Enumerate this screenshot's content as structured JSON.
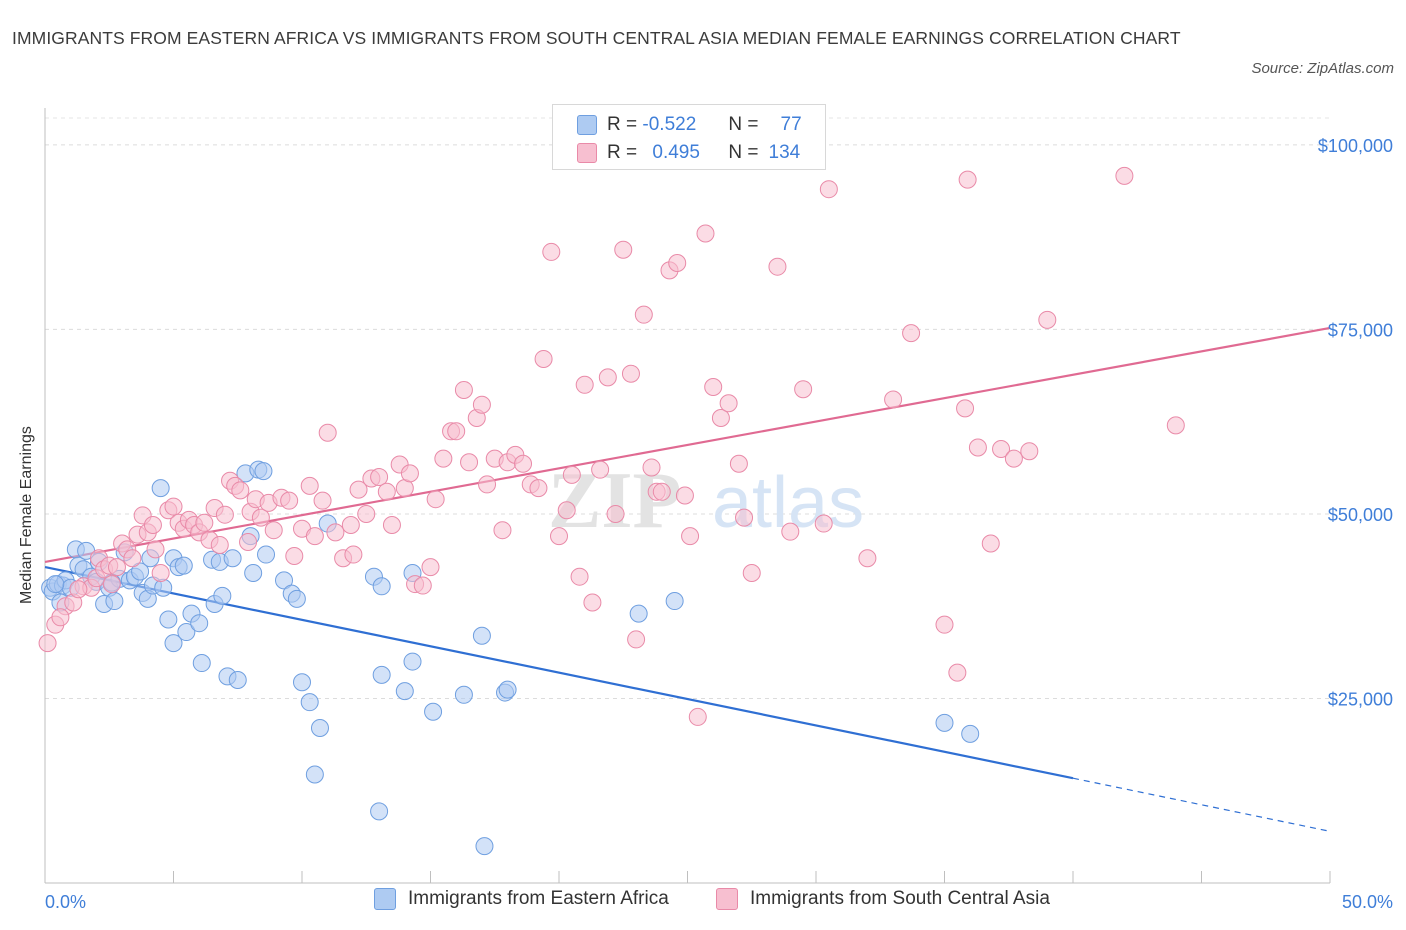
{
  "title": "IMMIGRANTS FROM EASTERN AFRICA VS IMMIGRANTS FROM SOUTH CENTRAL ASIA MEDIAN FEMALE EARNINGS CORRELATION CHART",
  "source": "Source: ZipAtlas.com",
  "watermark": {
    "zip": "ZIP",
    "atlas": "atlas"
  },
  "legend": {
    "rows": [
      {
        "r_label": "R =",
        "r_value": "-0.522",
        "n_label": "N =",
        "n_value": "77",
        "color": "#aecbf2",
        "border": "#6f9fe0"
      },
      {
        "r_label": "R =",
        "r_value": "0.495",
        "n_label": "N =",
        "n_value": "134",
        "color": "#f7bfd0",
        "border": "#e98aa8"
      }
    ]
  },
  "bottom_legend": {
    "items": [
      {
        "label": "Immigrants from Eastern Africa",
        "color": "#aecbf2",
        "border": "#6f9fe0"
      },
      {
        "label": "Immigrants from South Central Asia",
        "color": "#f7bfd0",
        "border": "#e98aa8"
      }
    ]
  },
  "chart_data": {
    "type": "scatter",
    "title": "IMMIGRANTS FROM EASTERN AFRICA VS IMMIGRANTS FROM SOUTH CENTRAL ASIA MEDIAN FEMALE EARNINGS CORRELATION CHART",
    "xlabel": "",
    "ylabel": "Median Female Earnings",
    "xlim": [
      0,
      50
    ],
    "ylim": [
      0,
      105000
    ],
    "x_tick_labels": [
      "0.0%",
      "50.0%"
    ],
    "y_ticks": [
      25000,
      50000,
      75000,
      100000
    ],
    "y_tick_labels": [
      "$25,000",
      "$50,000",
      "$75,000",
      "$100,000"
    ],
    "grid": true,
    "legend_position": "top-center",
    "series": [
      {
        "name": "Immigrants from Eastern Africa",
        "color": "#6f9fe0",
        "fill": "#aecbf2",
        "trend": {
          "x": [
            0,
            40
          ],
          "y": [
            42800,
            14200
          ],
          "dashed_to": [
            50,
            7000
          ]
        },
        "points": [
          [
            0.2,
            40000
          ],
          [
            0.3,
            39500
          ],
          [
            0.5,
            40500
          ],
          [
            0.7,
            40300
          ],
          [
            0.8,
            41000
          ],
          [
            1.0,
            40000
          ],
          [
            1.2,
            45200
          ],
          [
            1.3,
            43000
          ],
          [
            1.5,
            42500
          ],
          [
            1.6,
            45000
          ],
          [
            1.8,
            41500
          ],
          [
            2.0,
            40800
          ],
          [
            2.1,
            43500
          ],
          [
            2.3,
            37800
          ],
          [
            2.5,
            40000
          ],
          [
            2.7,
            38200
          ],
          [
            2.9,
            41200
          ],
          [
            3.1,
            44800
          ],
          [
            3.3,
            41000
          ],
          [
            3.5,
            41500
          ],
          [
            3.7,
            42200
          ],
          [
            3.8,
            39300
          ],
          [
            4.0,
            38500
          ],
          [
            4.1,
            44000
          ],
          [
            4.2,
            40300
          ],
          [
            4.5,
            53500
          ],
          [
            4.6,
            40000
          ],
          [
            4.8,
            35700
          ],
          [
            5.0,
            44000
          ],
          [
            5.0,
            32500
          ],
          [
            5.2,
            42800
          ],
          [
            5.4,
            43000
          ],
          [
            5.5,
            34000
          ],
          [
            5.7,
            36500
          ],
          [
            6.0,
            35200
          ],
          [
            6.1,
            29800
          ],
          [
            6.5,
            43800
          ],
          [
            6.6,
            37800
          ],
          [
            6.8,
            43500
          ],
          [
            6.9,
            38900
          ],
          [
            7.1,
            28000
          ],
          [
            7.3,
            44000
          ],
          [
            7.5,
            27500
          ],
          [
            7.8,
            55500
          ],
          [
            8.0,
            47000
          ],
          [
            8.1,
            42000
          ],
          [
            8.3,
            56000
          ],
          [
            8.5,
            55800
          ],
          [
            8.6,
            44500
          ],
          [
            9.3,
            41000
          ],
          [
            9.6,
            39200
          ],
          [
            9.8,
            38500
          ],
          [
            10.0,
            27200
          ],
          [
            10.3,
            24500
          ],
          [
            10.7,
            21000
          ],
          [
            10.5,
            14700
          ],
          [
            11.0,
            48700
          ],
          [
            12.8,
            41500
          ],
          [
            13.1,
            28200
          ],
          [
            13.1,
            40200
          ],
          [
            13.0,
            9700
          ],
          [
            14.0,
            26000
          ],
          [
            14.3,
            42000
          ],
          [
            14.3,
            30000
          ],
          [
            15.1,
            23200
          ],
          [
            16.3,
            25500
          ],
          [
            17.0,
            33500
          ],
          [
            17.1,
            5000
          ],
          [
            17.9,
            25800
          ],
          [
            18.0,
            26200
          ],
          [
            23.1,
            36500
          ],
          [
            24.5,
            38200
          ],
          [
            35.0,
            21700
          ],
          [
            36.0,
            20200
          ],
          [
            0.4,
            40500
          ],
          [
            0.6,
            38000
          ],
          [
            2.6,
            40700
          ]
        ]
      },
      {
        "name": "Immigrants from South Central Asia",
        "color": "#e98aa8",
        "fill": "#f7bfd0",
        "trend": {
          "x": [
            0,
            50
          ],
          "y": [
            43500,
            75200
          ]
        },
        "points": [
          [
            0.1,
            32500
          ],
          [
            0.4,
            35000
          ],
          [
            0.8,
            37500
          ],
          [
            1.1,
            38000
          ],
          [
            1.5,
            40200
          ],
          [
            1.8,
            40000
          ],
          [
            2.0,
            41300
          ],
          [
            2.1,
            44000
          ],
          [
            2.3,
            42500
          ],
          [
            2.5,
            43000
          ],
          [
            2.6,
            40500
          ],
          [
            2.8,
            42800
          ],
          [
            3.0,
            46000
          ],
          [
            3.2,
            45200
          ],
          [
            3.4,
            44000
          ],
          [
            3.6,
            47200
          ],
          [
            3.8,
            49800
          ],
          [
            4.0,
            47500
          ],
          [
            4.2,
            48500
          ],
          [
            4.3,
            45200
          ],
          [
            4.5,
            42000
          ],
          [
            4.8,
            50500
          ],
          [
            5.0,
            51000
          ],
          [
            5.2,
            48800
          ],
          [
            5.4,
            48000
          ],
          [
            5.6,
            49200
          ],
          [
            5.8,
            48500
          ],
          [
            6.0,
            47500
          ],
          [
            6.2,
            48800
          ],
          [
            6.4,
            46500
          ],
          [
            6.6,
            50800
          ],
          [
            6.8,
            45800
          ],
          [
            7.0,
            49900
          ],
          [
            7.2,
            54500
          ],
          [
            7.4,
            53800
          ],
          [
            7.6,
            53200
          ],
          [
            7.9,
            46200
          ],
          [
            8.0,
            50300
          ],
          [
            8.2,
            52000
          ],
          [
            8.4,
            49500
          ],
          [
            8.7,
            51500
          ],
          [
            8.9,
            47800
          ],
          [
            9.2,
            52200
          ],
          [
            9.5,
            51800
          ],
          [
            9.7,
            44300
          ],
          [
            10.0,
            48000
          ],
          [
            10.3,
            53800
          ],
          [
            10.5,
            47000
          ],
          [
            10.8,
            51800
          ],
          [
            11.0,
            61000
          ],
          [
            11.3,
            47500
          ],
          [
            11.6,
            44000
          ],
          [
            11.9,
            48500
          ],
          [
            12.2,
            53300
          ],
          [
            12.5,
            50000
          ],
          [
            12.7,
            54800
          ],
          [
            13.0,
            55000
          ],
          [
            13.3,
            53000
          ],
          [
            13.5,
            48500
          ],
          [
            13.8,
            56700
          ],
          [
            14.0,
            53500
          ],
          [
            14.2,
            55500
          ],
          [
            14.4,
            40500
          ],
          [
            14.7,
            40300
          ],
          [
            15.0,
            42800
          ],
          [
            15.2,
            52000
          ],
          [
            15.5,
            57500
          ],
          [
            15.8,
            61200
          ],
          [
            16.0,
            61200
          ],
          [
            16.3,
            66800
          ],
          [
            16.5,
            57000
          ],
          [
            16.8,
            63000
          ],
          [
            17.0,
            64800
          ],
          [
            17.2,
            54000
          ],
          [
            17.5,
            57500
          ],
          [
            17.8,
            47800
          ],
          [
            18.0,
            57000
          ],
          [
            18.3,
            58000
          ],
          [
            18.6,
            56800
          ],
          [
            18.9,
            54000
          ],
          [
            19.2,
            53500
          ],
          [
            19.4,
            71000
          ],
          [
            19.7,
            85500
          ],
          [
            20.0,
            47000
          ],
          [
            20.3,
            50500
          ],
          [
            20.5,
            55300
          ],
          [
            20.8,
            41500
          ],
          [
            21.0,
            67500
          ],
          [
            21.3,
            38000
          ],
          [
            21.6,
            56000
          ],
          [
            21.9,
            68500
          ],
          [
            22.2,
            50000
          ],
          [
            22.5,
            85800
          ],
          [
            22.8,
            69000
          ],
          [
            23.0,
            33000
          ],
          [
            23.3,
            77000
          ],
          [
            23.6,
            56300
          ],
          [
            23.8,
            53000
          ],
          [
            24.0,
            53000
          ],
          [
            24.3,
            83000
          ],
          [
            24.6,
            84000
          ],
          [
            24.9,
            52500
          ],
          [
            25.1,
            47000
          ],
          [
            25.4,
            22500
          ],
          [
            25.7,
            88000
          ],
          [
            26.0,
            67200
          ],
          [
            26.3,
            63000
          ],
          [
            26.6,
            65000
          ],
          [
            27.0,
            56800
          ],
          [
            27.5,
            42000
          ],
          [
            28.5,
            83500
          ],
          [
            29.0,
            47600
          ],
          [
            29.5,
            66900
          ],
          [
            30.3,
            48700
          ],
          [
            30.5,
            94000
          ],
          [
            32.0,
            44000
          ],
          [
            33.0,
            65500
          ],
          [
            33.7,
            74500
          ],
          [
            35.0,
            35000
          ],
          [
            35.5,
            28500
          ],
          [
            35.8,
            64300
          ],
          [
            35.9,
            95300
          ],
          [
            36.3,
            59000
          ],
          [
            36.8,
            46000
          ],
          [
            37.2,
            58800
          ],
          [
            37.7,
            57500
          ],
          [
            38.3,
            58500
          ],
          [
            39.0,
            76300
          ],
          [
            42.0,
            95800
          ],
          [
            44.0,
            62000
          ],
          [
            0.6,
            36000
          ],
          [
            1.3,
            39800
          ],
          [
            12.0,
            44500
          ],
          [
            27.2,
            49500
          ]
        ]
      }
    ]
  }
}
